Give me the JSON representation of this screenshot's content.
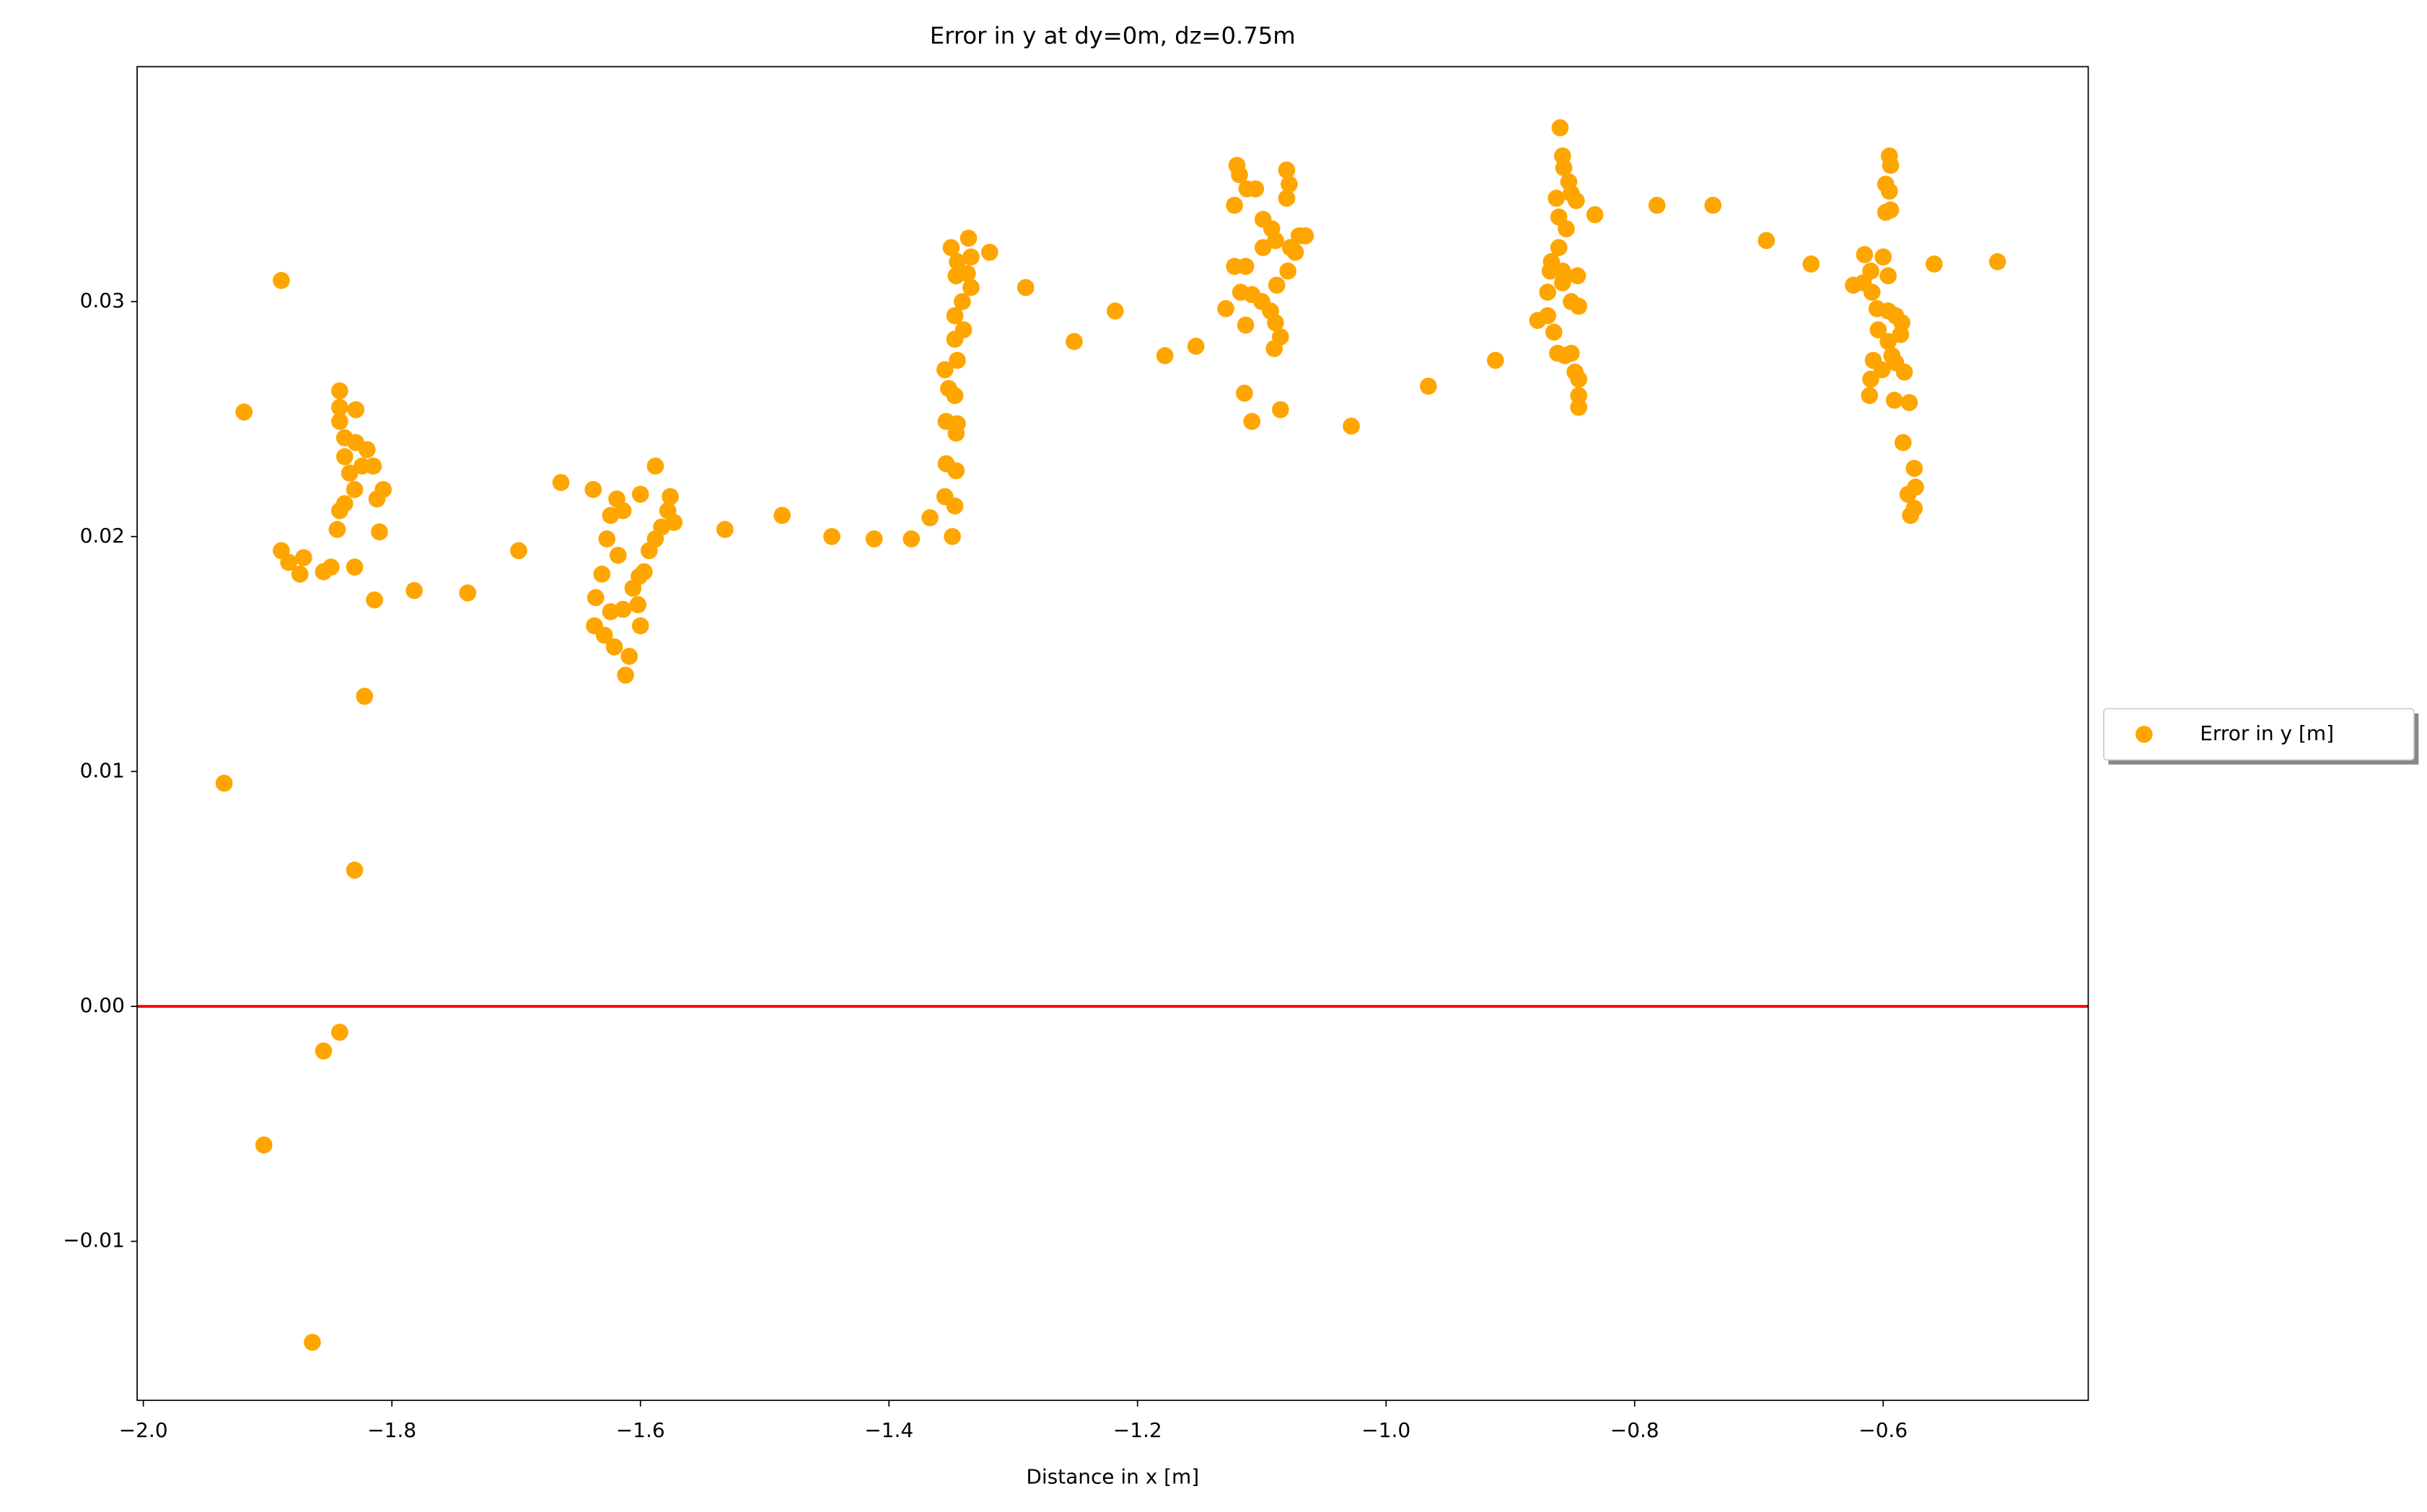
{
  "chart_data": {
    "type": "scatter",
    "title": "Error in y at dy=0m, dz=0.75m",
    "x_label": "Distance in x [m]",
    "xlim": [
      -2.005,
      -0.435
    ],
    "ylim": [
      -0.01677,
      0.04
    ],
    "xticks": [
      {
        "value": -2.0,
        "label": "−2.0"
      },
      {
        "value": -1.8,
        "label": "−1.8"
      },
      {
        "value": -1.6,
        "label": "−1.6"
      },
      {
        "value": -1.4,
        "label": "−1.4"
      },
      {
        "value": -1.2,
        "label": "−1.2"
      },
      {
        "value": -1.0,
        "label": "−1.0"
      },
      {
        "value": -0.8,
        "label": "−0.8"
      },
      {
        "value": -0.6,
        "label": "−0.6"
      }
    ],
    "yticks": [
      {
        "value": -0.01,
        "label": "−0.01"
      },
      {
        "value": 0,
        "label": "0.00"
      },
      0.01,
      0.02,
      0.03
    ],
    "grid": false,
    "legend": "right",
    "reference_line": {
      "value": 0,
      "color": "#ff0000"
    },
    "x": [
      -1.935,
      -1.919,
      -1.889,
      -1.903,
      -1.864,
      -1.855,
      -1.842,
      -1.83,
      -1.822,
      -1.814,
      -1.889,
      -1.883,
      -1.874,
      -1.871,
      -1.855,
      -1.849,
      -1.83,
      -1.842,
      -1.842,
      -1.842,
      -1.838,
      -1.829,
      -1.829,
      -1.838,
      -1.834,
      -1.83,
      -1.838,
      -1.842,
      -1.844,
      -1.82,
      -1.815,
      -1.812,
      -1.807,
      -1.81,
      -1.824,
      -1.782,
      -1.739,
      -1.698,
      -1.664,
      -1.638,
      -1.636,
      -1.637,
      -1.631,
      -1.627,
      -1.624,
      -1.619,
      -1.614,
      -1.621,
      -1.612,
      -1.609,
      -1.614,
      -1.624,
      -1.629,
      -1.606,
      -1.601,
      -1.6,
      -1.618,
      -1.6,
      -1.588,
      -1.593,
      -1.588,
      -1.583,
      -1.578,
      -1.576,
      -1.573,
      -1.597,
      -1.602,
      -1.532,
      -1.486,
      -1.446,
      -1.412,
      -1.382,
      -1.367,
      -1.349,
      -1.347,
      -1.355,
      -1.346,
      -1.354,
      -1.346,
      -1.354,
      -1.345,
      -1.347,
      -1.352,
      -1.355,
      -1.345,
      -1.347,
      -1.34,
      -1.347,
      -1.341,
      -1.334,
      -1.337,
      -1.345,
      -1.35,
      -1.336,
      -1.334,
      -1.346,
      -1.319,
      -1.29,
      -1.251,
      -1.218,
      -1.178,
      -1.153,
      -1.129,
      -1.12,
      -1.118,
      -1.122,
      -1.112,
      -1.105,
      -1.122,
      -1.113,
      -1.117,
      -1.108,
      -1.113,
      -1.114,
      -1.108,
      -1.099,
      -1.092,
      -1.099,
      -1.089,
      -1.1,
      -1.093,
      -1.089,
      -1.085,
      -1.09,
      -1.085,
      -1.08,
      -1.078,
      -1.08,
      -1.077,
      -1.079,
      -1.088,
      -1.07,
      -1.065,
      -1.073,
      -1.028,
      -0.966,
      -0.912,
      -0.86,
      -0.858,
      -0.857,
      -0.853,
      -0.863,
      -0.851,
      -0.847,
      -0.861,
      -0.855,
      -0.861,
      -0.867,
      -0.868,
      -0.858,
      -0.846,
      -0.87,
      -0.858,
      -0.878,
      -0.87,
      -0.865,
      -0.851,
      -0.845,
      -0.862,
      -0.856,
      -0.851,
      -0.848,
      -0.845,
      -0.845,
      -0.845,
      -0.832,
      -0.782,
      -0.737,
      -0.694,
      -0.658,
      -0.624,
      -0.559,
      -0.508,
      -0.595,
      -0.594,
      -0.598,
      -0.595,
      -0.598,
      -0.594,
      -0.615,
      -0.6,
      -0.61,
      -0.596,
      -0.616,
      -0.609,
      -0.605,
      -0.596,
      -0.59,
      -0.585,
      -0.604,
      -0.586,
      -0.596,
      -0.593,
      -0.608,
      -0.59,
      -0.601,
      -0.583,
      -0.61,
      -0.611,
      -0.591,
      -0.579,
      -0.584,
      -0.575,
      -0.574,
      -0.58,
      -0.575,
      -0.578
    ],
    "series": [
      {
        "name": "Error in y [m]",
        "color": "#ffa500",
        "values": [
          0.0095,
          0.0253,
          0.0309,
          -0.0059,
          -0.0143,
          -0.0019,
          -0.0011,
          0.0058,
          0.0132,
          0.0173,
          0.0194,
          0.0189,
          0.0184,
          0.0191,
          0.0185,
          0.0187,
          0.0187,
          0.0262,
          0.0255,
          0.0249,
          0.0242,
          0.0254,
          0.024,
          0.0234,
          0.0227,
          0.022,
          0.0214,
          0.0211,
          0.0203,
          0.0237,
          0.023,
          0.0216,
          0.022,
          0.0202,
          0.023,
          0.0177,
          0.0176,
          0.0194,
          0.0223,
          0.022,
          0.0174,
          0.0162,
          0.0184,
          0.0199,
          0.0209,
          0.0216,
          0.0211,
          0.0153,
          0.0141,
          0.0149,
          0.0169,
          0.0168,
          0.0158,
          0.0178,
          0.0183,
          0.0162,
          0.0192,
          0.0218,
          0.023,
          0.0194,
          0.0199,
          0.0204,
          0.0211,
          0.0217,
          0.0206,
          0.0185,
          0.0171,
          0.0203,
          0.0209,
          0.02,
          0.0199,
          0.0199,
          0.0208,
          0.02,
          0.0213,
          0.0217,
          0.0228,
          0.0231,
          0.0244,
          0.0249,
          0.0248,
          0.026,
          0.0263,
          0.0271,
          0.0275,
          0.0284,
          0.0288,
          0.0294,
          0.03,
          0.0306,
          0.0312,
          0.0317,
          0.0323,
          0.0327,
          0.0319,
          0.0311,
          0.0321,
          0.0306,
          0.0283,
          0.0296,
          0.0277,
          0.0281,
          0.0297,
          0.0358,
          0.0354,
          0.0341,
          0.0348,
          0.0348,
          0.0315,
          0.0315,
          0.0304,
          0.0303,
          0.029,
          0.0261,
          0.0249,
          0.0335,
          0.0331,
          0.0323,
          0.0326,
          0.03,
          0.0296,
          0.0291,
          0.0285,
          0.028,
          0.0254,
          0.0356,
          0.035,
          0.0344,
          0.0323,
          0.0313,
          0.0307,
          0.0328,
          0.0328,
          0.0321,
          0.0247,
          0.0264,
          0.0275,
          0.0374,
          0.0362,
          0.0357,
          0.0351,
          0.0344,
          0.0346,
          0.0343,
          0.0336,
          0.0331,
          0.0323,
          0.0317,
          0.0313,
          0.0313,
          0.0311,
          0.0304,
          0.0308,
          0.0292,
          0.0294,
          0.0287,
          0.03,
          0.0298,
          0.0278,
          0.0277,
          0.0278,
          0.027,
          0.0267,
          0.026,
          0.0255,
          0.0337,
          0.0341,
          0.0341,
          0.0326,
          0.0316,
          0.0307,
          0.0316,
          0.0317,
          0.0362,
          0.0358,
          0.035,
          0.0347,
          0.0338,
          0.0339,
          0.032,
          0.0319,
          0.0313,
          0.0311,
          0.0308,
          0.0304,
          0.0297,
          0.0296,
          0.0294,
          0.0291,
          0.0288,
          0.0286,
          0.0283,
          0.0277,
          0.0275,
          0.0274,
          0.0271,
          0.027,
          0.0267,
          0.026,
          0.0258,
          0.0257,
          0.024,
          0.0229,
          0.0221,
          0.0218,
          0.0212,
          0.0209
        ]
      }
    ]
  }
}
